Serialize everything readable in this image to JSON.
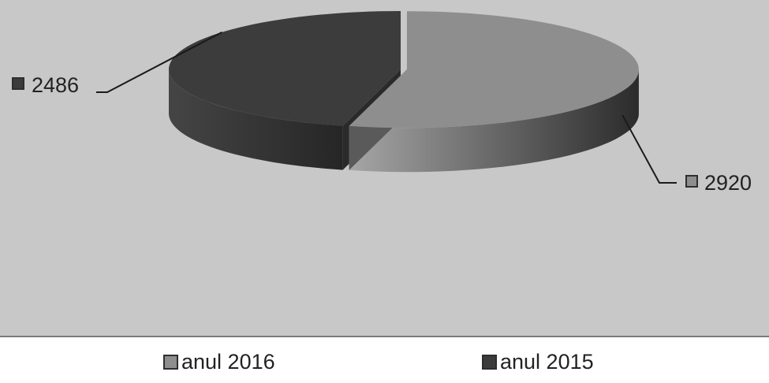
{
  "chart_data": {
    "type": "pie",
    "variant": "3d",
    "series": [
      {
        "name": "anul 2016",
        "value": 2920,
        "label": "2920",
        "color": "#8e8e8e",
        "label_side": "right"
      },
      {
        "name": "anul 2015",
        "value": 2486,
        "label": "2486",
        "color": "#3c3c3c",
        "label_side": "left"
      }
    ],
    "legend": {
      "position": "bottom"
    },
    "background": "#c8c8c8"
  }
}
